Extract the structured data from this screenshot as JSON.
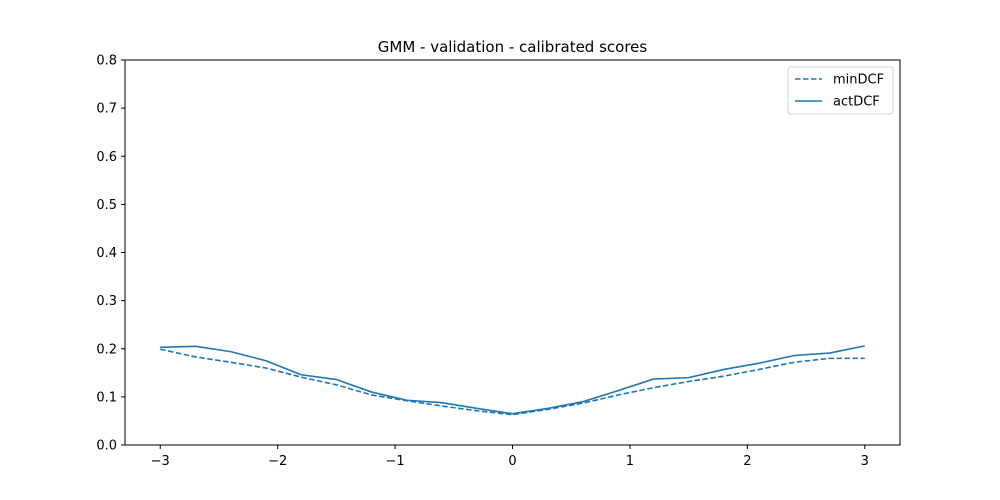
{
  "chart_data": {
    "type": "line",
    "title": "GMM - validation - calibrated scores",
    "xlabel": "",
    "ylabel": "",
    "xlim": [
      -3.3,
      3.3
    ],
    "ylim": [
      0,
      0.8
    ],
    "x_ticks": [
      -3,
      -2,
      -1,
      0,
      1,
      2,
      3
    ],
    "x_tick_labels": [
      "−3",
      "−2",
      "−1",
      "0",
      "1",
      "2",
      "3"
    ],
    "y_ticks": [
      0.0,
      0.1,
      0.2,
      0.3,
      0.4,
      0.5,
      0.6,
      0.7,
      0.8
    ],
    "y_tick_labels": [
      "0.0",
      "0.1",
      "0.2",
      "0.3",
      "0.4",
      "0.5",
      "0.6",
      "0.7",
      "0.8"
    ],
    "grid": false,
    "legend_position": "top-right",
    "x": [
      -3.0,
      -2.7,
      -2.4,
      -2.1,
      -1.8,
      -1.5,
      -1.2,
      -0.9,
      -0.6,
      -0.3,
      0.0,
      0.3,
      0.6,
      0.9,
      1.2,
      1.5,
      1.8,
      2.1,
      2.4,
      2.7,
      3.0
    ],
    "series": [
      {
        "name": "minDCF",
        "style": "dashed",
        "color": "#1f77b4",
        "values": [
          0.199,
          0.183,
          0.172,
          0.16,
          0.141,
          0.125,
          0.104,
          0.092,
          0.081,
          0.071,
          0.063,
          0.074,
          0.087,
          0.104,
          0.119,
          0.132,
          0.143,
          0.157,
          0.172,
          0.18,
          0.18
        ]
      },
      {
        "name": "actDCF",
        "style": "solid",
        "color": "#1f77b4",
        "values": [
          0.203,
          0.205,
          0.194,
          0.175,
          0.146,
          0.136,
          0.11,
          0.093,
          0.088,
          0.076,
          0.065,
          0.076,
          0.09,
          0.113,
          0.137,
          0.14,
          0.157,
          0.17,
          0.186,
          0.191,
          0.206
        ]
      }
    ]
  }
}
